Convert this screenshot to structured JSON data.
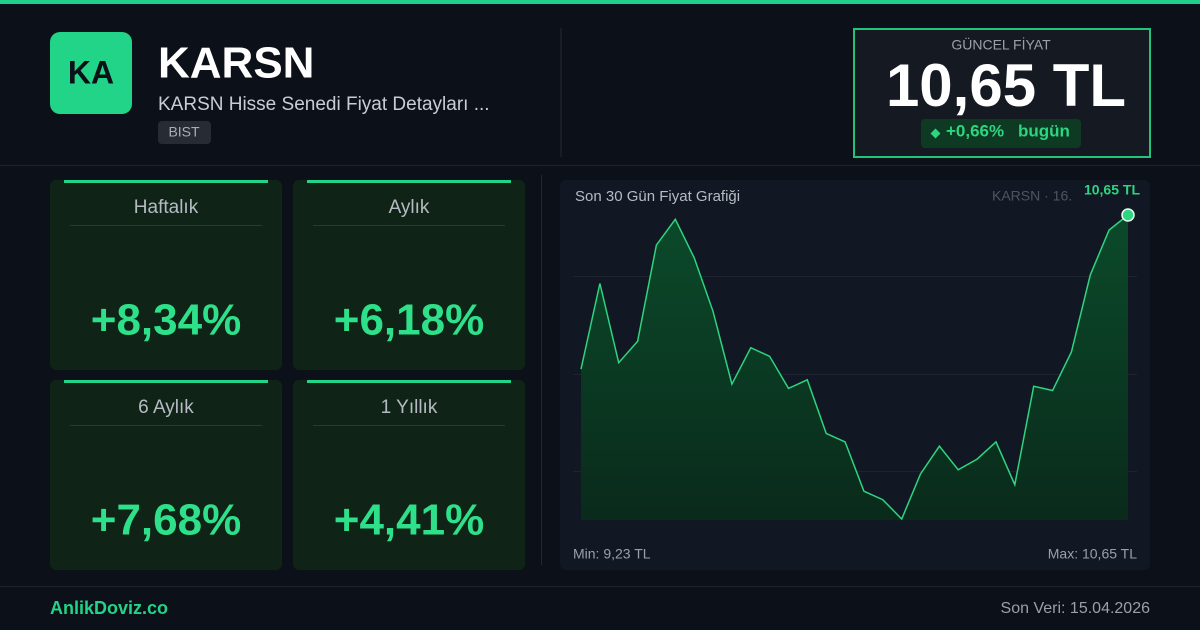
{
  "header": {
    "logo": "KA",
    "title": "KARSN",
    "subtitle": "KARSN Hisse Senedi Fiyat Detayları ...",
    "badge": "BIST"
  },
  "price": {
    "label": "GÜNCEL FİYAT",
    "value": "10,65 TL",
    "change": "+0,66%",
    "period": "bugün"
  },
  "cards": [
    {
      "label": "Haftalık",
      "value": "+8,34%"
    },
    {
      "label": "Aylık",
      "value": "+6,18%"
    },
    {
      "label": "6 Aylık",
      "value": "+7,68%"
    },
    {
      "label": "1 Yıllık",
      "value": "+4,41%"
    }
  ],
  "chart_data": {
    "type": "area",
    "title": "Son 30 Gün Fiyat Grafiği",
    "legend_text": "KARSN · 16.",
    "values": [
      9.93,
      10.33,
      9.96,
      10.06,
      10.51,
      10.63,
      10.45,
      10.2,
      9.86,
      10.03,
      9.99,
      9.84,
      9.88,
      9.63,
      9.59,
      9.36,
      9.32,
      9.23,
      9.44,
      9.57,
      9.46,
      9.51,
      9.59,
      9.39,
      9.85,
      9.83,
      10.01,
      10.37,
      10.58,
      10.65
    ],
    "value_labels": [
      null,
      null,
      null,
      null,
      null,
      null,
      null,
      null,
      null,
      null,
      null,
      null,
      null,
      null,
      null,
      null,
      null,
      null,
      null,
      null,
      null,
      null,
      null,
      null,
      null,
      null,
      null,
      null,
      null,
      "10,65 TL"
    ],
    "ylim": [
      9.23,
      10.65
    ],
    "color": "#2ed47f",
    "min_label": "Min: 9,23 TL",
    "max_label": "Max: 10,65 TL"
  },
  "footer": {
    "brand": "AnlikDoviz.co",
    "last_update": "Son Veri: 15.04.2026"
  }
}
